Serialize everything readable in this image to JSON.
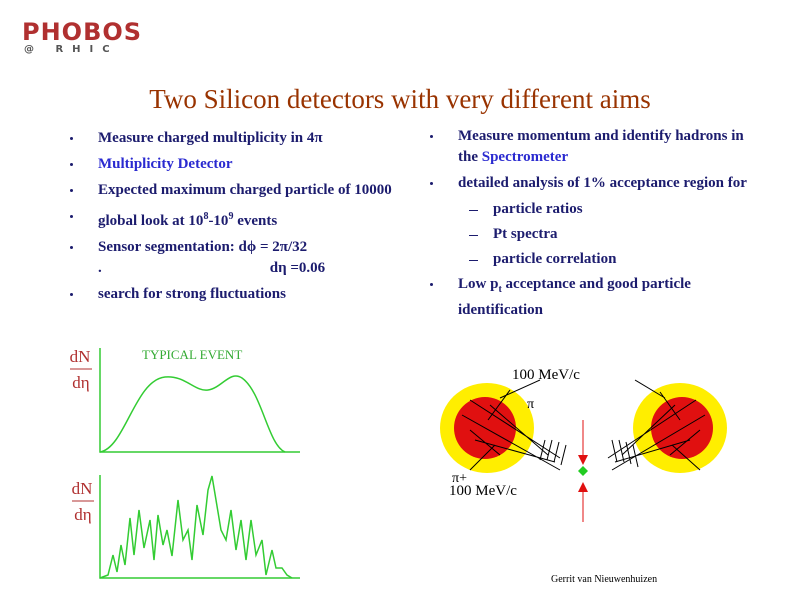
{
  "logo": {
    "name": "PHOBOS",
    "site": "@ RHIC"
  },
  "title": "Two Silicon detectors with very different aims",
  "left_bullets": [
    [
      "Measure charged multiplicity in 4π"
    ],
    [
      "Multiplicity Detector"
    ],
    [
      "Expected maximum charged particle of 10000"
    ],
    [
      "global look at 10",
      "8",
      "-10",
      "9",
      " events"
    ],
    [
      "Sensor segmentation: dϕ = 2π/32",
      ".",
      "dη =0.06"
    ],
    [
      "search for strong fluctuations"
    ]
  ],
  "right_bullets": [
    [
      "Measure momentum and identify hadrons in the ",
      "Spectrometer"
    ],
    [
      "detailed analysis of 1% acceptance region for"
    ],
    [
      "Low p",
      "t",
      " acceptance and good particle identification"
    ]
  ],
  "sub_bullets": [
    "particle ratios",
    "Pt spectra",
    "particle correlation"
  ],
  "plots": {
    "numerator": "dN",
    "denominator": "dη",
    "label": "TYPICAL EVENT"
  },
  "diagram": {
    "top_momentum": "100 MeV/c",
    "pi_minus": "π",
    "pi_plus": "π+",
    "bottom_momentum": "100 MeV/c"
  },
  "footer": "Gerrit van Nieuwenhuizen"
}
